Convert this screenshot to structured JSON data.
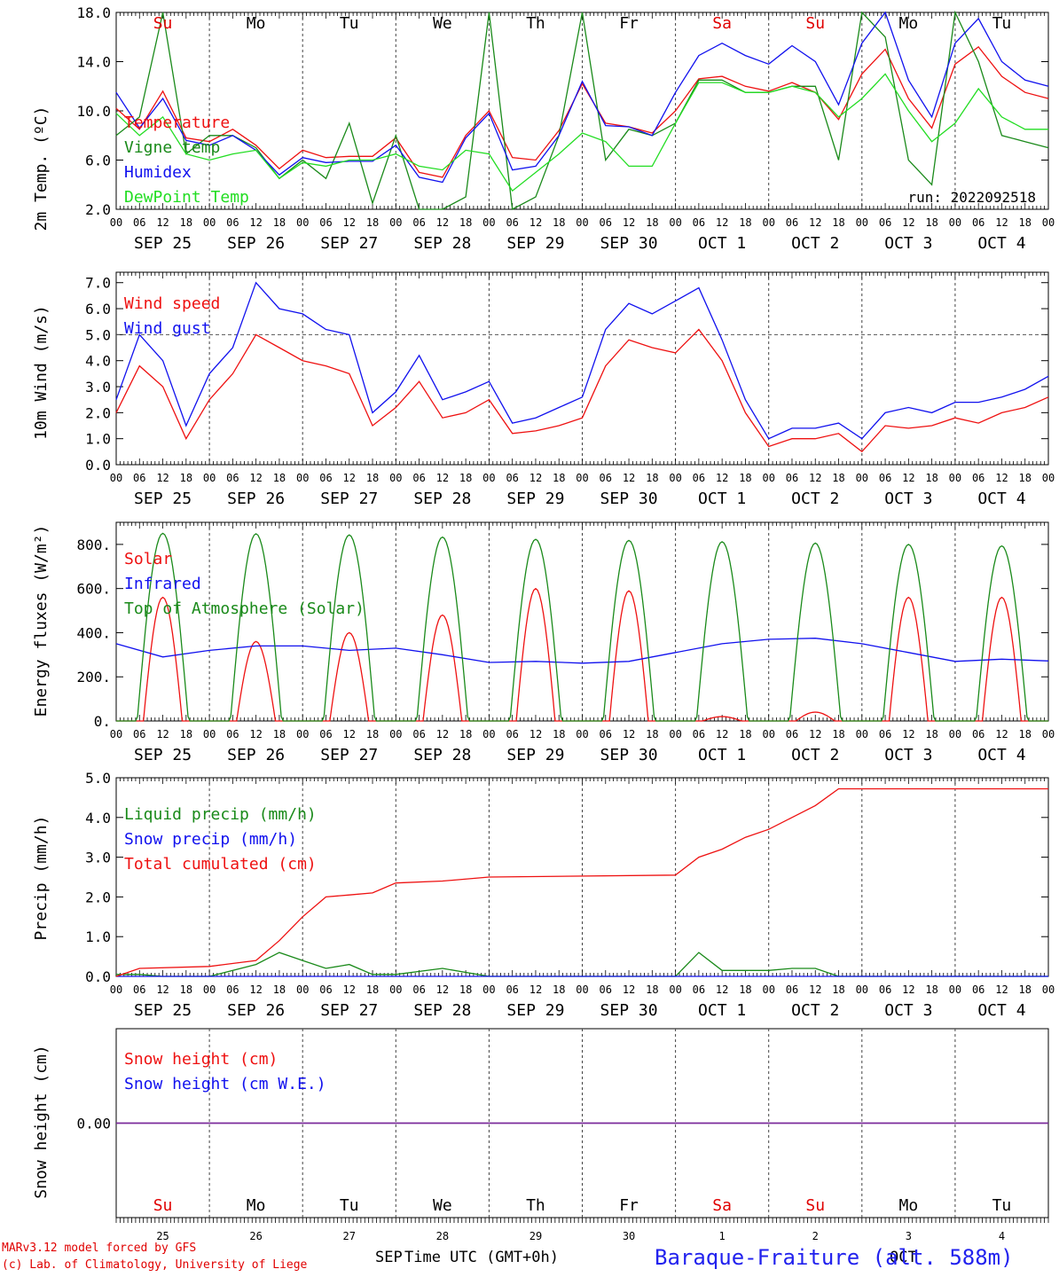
{
  "run_label": "run: 2022092518",
  "station": "Baraque-Fraiture (alt. 588m)",
  "credits": [
    "MARv3.12 model forced by GFS",
    "(c) Lab. of Climatology, University of Liege"
  ],
  "x_axis_title": "Time UTC (GMT+0h)",
  "bottom_month_labels": {
    "sep": "SEP",
    "oct": "OCT"
  },
  "day_names": [
    {
      "name": "Su",
      "color": "#e00000"
    },
    {
      "name": "Mo",
      "color": "#000000"
    },
    {
      "name": "Tu",
      "color": "#000000"
    },
    {
      "name": "We",
      "color": "#000000"
    },
    {
      "name": "Th",
      "color": "#000000"
    },
    {
      "name": "Fr",
      "color": "#000000"
    },
    {
      "name": "Sa",
      "color": "#e00000"
    },
    {
      "name": "Su",
      "color": "#e00000"
    },
    {
      "name": "Mo",
      "color": "#000000"
    },
    {
      "name": "Tu",
      "color": "#000000"
    }
  ],
  "day_numbers": [
    "25",
    "26",
    "27",
    "28",
    "29",
    "30",
    "1",
    "2",
    "3",
    "4"
  ],
  "date_labels": [
    "SEP 25",
    "SEP 26",
    "SEP 27",
    "SEP 28",
    "SEP 29",
    "SEP 30",
    "OCT  1",
    "OCT  2",
    "OCT  3",
    "OCT  4"
  ],
  "hour_labels": [
    "00",
    "06",
    "12",
    "18"
  ],
  "colors": {
    "red": "#ee1111",
    "green": "#1a8a1a",
    "blue": "#1111ee",
    "lightgreen": "#22dd22",
    "purple": "#7a2a9a"
  },
  "chart_data": [
    {
      "type": "line",
      "ylabel": "2m Temp. (ºC)",
      "ylim": [
        2.0,
        18.0
      ],
      "yticks": [
        "2.0",
        "6.0",
        "10.0",
        "14.0",
        "18.0"
      ],
      "x_unit": "hours since 2022-09-25 00 UTC",
      "annotation": "run: 2022092518",
      "series": [
        {
          "name": "Temperature",
          "color": "#ee1111",
          "x": [
            0,
            6,
            12,
            18,
            24,
            30,
            36,
            42,
            48,
            54,
            60,
            66,
            72,
            78,
            84,
            90,
            96,
            102,
            108,
            114,
            120,
            126,
            132,
            138,
            144,
            150,
            156,
            162,
            168,
            174,
            180,
            186,
            192,
            198,
            204,
            210,
            216,
            222,
            228,
            234,
            240
          ],
          "values": [
            10.2,
            8.5,
            11.6,
            7.8,
            7.5,
            8.5,
            7.2,
            5.3,
            6.8,
            6.2,
            6.3,
            6.3,
            7.8,
            5.0,
            4.6,
            8.0,
            10.0,
            6.2,
            6.0,
            8.4,
            12.2,
            9.0,
            8.7,
            8.2,
            10.0,
            12.6,
            12.8,
            12.0,
            11.6,
            12.3,
            11.5,
            9.3,
            13.0,
            15.0,
            11.0,
            8.6,
            13.8,
            15.2,
            12.8,
            11.5,
            11.0
          ]
        },
        {
          "name": "Vigne temp",
          "color": "#1a8a1a",
          "x": [
            0,
            6,
            12,
            18,
            24,
            30,
            36,
            42,
            48,
            54,
            60,
            66,
            72,
            78,
            84,
            90,
            96,
            102,
            108,
            114,
            120,
            126,
            132,
            138,
            144,
            150,
            156,
            162,
            168,
            174,
            180,
            186,
            192,
            198,
            204,
            210,
            216,
            222,
            228,
            234,
            240
          ],
          "values": [
            8.0,
            9.5,
            18.0,
            6.5,
            8.0,
            8.0,
            7.0,
            4.5,
            6.0,
            4.5,
            9.0,
            2.5,
            8.0,
            2.0,
            2.0,
            3.0,
            18.0,
            1.5,
            3.0,
            8.0,
            18.0,
            6.0,
            8.5,
            8.0,
            9.0,
            12.5,
            12.5,
            11.5,
            11.5,
            12.0,
            12.0,
            6.0,
            18.0,
            16.0,
            6.0,
            4.0,
            18.0,
            14.0,
            8.0,
            7.5,
            7.0
          ]
        },
        {
          "name": "Humidex",
          "color": "#1111ee",
          "x": [
            0,
            6,
            12,
            18,
            24,
            30,
            36,
            42,
            48,
            54,
            60,
            66,
            72,
            78,
            84,
            90,
            96,
            102,
            108,
            114,
            120,
            126,
            132,
            138,
            144,
            150,
            156,
            162,
            168,
            174,
            180,
            186,
            192,
            198,
            204,
            210,
            216,
            222,
            228,
            234,
            240
          ],
          "values": [
            11.5,
            8.6,
            11.0,
            7.6,
            7.2,
            8.0,
            6.8,
            4.8,
            6.2,
            5.8,
            5.9,
            5.9,
            7.2,
            4.6,
            4.2,
            7.8,
            9.8,
            5.2,
            5.5,
            8.0,
            12.4,
            8.8,
            8.7,
            8.0,
            11.5,
            14.5,
            15.5,
            14.5,
            13.8,
            15.3,
            14.0,
            10.5,
            15.5,
            18.0,
            12.5,
            9.5,
            15.5,
            17.5,
            14.0,
            12.5,
            12.0
          ]
        },
        {
          "name": "DewPoint Temp",
          "color": "#22dd22",
          "x": [
            0,
            6,
            12,
            18,
            24,
            30,
            36,
            42,
            48,
            54,
            60,
            66,
            72,
            78,
            84,
            90,
            96,
            102,
            108,
            114,
            120,
            126,
            132,
            138,
            144,
            150,
            156,
            162,
            168,
            174,
            180,
            186,
            192,
            198,
            204,
            210,
            216,
            222,
            228,
            234,
            240
          ],
          "values": [
            9.8,
            8.0,
            9.5,
            6.5,
            6.0,
            6.5,
            6.8,
            4.5,
            5.8,
            5.5,
            6.0,
            6.0,
            6.5,
            5.5,
            5.2,
            6.8,
            6.5,
            3.5,
            5.0,
            6.5,
            8.2,
            7.5,
            5.5,
            5.5,
            9.0,
            12.3,
            12.3,
            11.5,
            11.5,
            12.0,
            11.5,
            9.5,
            11.0,
            13.0,
            10.0,
            7.5,
            9.0,
            11.8,
            9.5,
            8.5,
            8.5
          ]
        }
      ],
      "legend": [
        "Temperature",
        "Vigne temp",
        "Humidex",
        "DewPoint Temp"
      ],
      "legend_placement": "top-left"
    },
    {
      "type": "line",
      "ylabel": "10m Wind (m/s)",
      "ylim": [
        0.0,
        7.5
      ],
      "yticks": [
        "0.0",
        "1.0",
        "2.0",
        "3.0",
        "4.0",
        "5.0",
        "6.0",
        "7.0"
      ],
      "reference_line": 5.0,
      "series": [
        {
          "name": "Wind speed",
          "color": "#ee1111",
          "x": [
            0,
            6,
            12,
            18,
            24,
            30,
            36,
            42,
            48,
            54,
            60,
            66,
            72,
            78,
            84,
            90,
            96,
            102,
            108,
            114,
            120,
            126,
            132,
            138,
            144,
            150,
            156,
            162,
            168,
            174,
            180,
            186,
            192,
            198,
            204,
            210,
            216,
            222,
            228,
            234,
            240
          ],
          "values": [
            2.0,
            3.8,
            3.0,
            1.0,
            2.5,
            3.5,
            5.0,
            4.5,
            4.0,
            3.8,
            3.5,
            1.5,
            2.2,
            3.2,
            1.8,
            2.0,
            2.5,
            1.2,
            1.3,
            1.5,
            1.8,
            3.8,
            4.8,
            4.5,
            4.3,
            5.2,
            4.0,
            2.0,
            0.7,
            1.0,
            1.0,
            1.2,
            0.5,
            1.5,
            1.4,
            1.5,
            1.8,
            1.6,
            2.0,
            2.2,
            2.6
          ]
        },
        {
          "name": "Wind gust",
          "color": "#1111ee",
          "x": [
            0,
            6,
            12,
            18,
            24,
            30,
            36,
            42,
            48,
            54,
            60,
            66,
            72,
            78,
            84,
            90,
            96,
            102,
            108,
            114,
            120,
            126,
            132,
            138,
            144,
            150,
            156,
            162,
            168,
            174,
            180,
            186,
            192,
            198,
            204,
            210,
            216,
            222,
            228,
            234,
            240
          ],
          "values": [
            2.5,
            5.0,
            4.0,
            1.5,
            3.5,
            4.5,
            7.0,
            6.0,
            5.8,
            5.2,
            5.0,
            2.0,
            2.8,
            4.2,
            2.5,
            2.8,
            3.2,
            1.6,
            1.8,
            2.2,
            2.6,
            5.2,
            6.2,
            5.8,
            6.3,
            6.8,
            4.8,
            2.5,
            1.0,
            1.4,
            1.4,
            1.6,
            1.0,
            2.0,
            2.2,
            2.0,
            2.4,
            2.4,
            2.6,
            2.9,
            3.4
          ]
        }
      ],
      "legend": [
        "Wind speed",
        "Wind gust"
      ],
      "legend_placement": "top-left"
    },
    {
      "type": "line",
      "ylabel": "Energy fluxes (W/m²)",
      "ylim": [
        0,
        900
      ],
      "yticks": [
        "0.",
        "200.",
        "400.",
        "600.",
        "800."
      ],
      "series": [
        {
          "name": "Solar",
          "color": "#ee1111",
          "peak_hour": 12,
          "daily_peaks": [
            560,
            360,
            400,
            480,
            600,
            590,
            20,
            40,
            560,
            560
          ]
        },
        {
          "name": "Infrared",
          "color": "#1111ee",
          "x": [
            0,
            12,
            24,
            36,
            48,
            60,
            72,
            84,
            96,
            108,
            120,
            132,
            144,
            156,
            168,
            180,
            192,
            204,
            216,
            228,
            240
          ],
          "values": [
            350,
            290,
            320,
            340,
            340,
            320,
            330,
            300,
            265,
            270,
            262,
            270,
            310,
            350,
            370,
            375,
            350,
            310,
            270,
            280,
            272
          ]
        },
        {
          "name": "Top of Atmosphere (Solar)",
          "color": "#1a8a1a",
          "peak_hour": 12,
          "daily_peaks": [
            850,
            848,
            843,
            833,
            823,
            818,
            812,
            806,
            800,
            793
          ]
        }
      ],
      "legend": [
        "Solar",
        "Infrared",
        "Top of Atmosphere (Solar)"
      ],
      "legend_placement": "top-left"
    },
    {
      "type": "line",
      "ylabel": "Precip (mm/h)",
      "ylim": [
        0.0,
        5.0
      ],
      "yticks": [
        "0.0",
        "1.0",
        "2.0",
        "3.0",
        "4.0",
        "5.0"
      ],
      "series": [
        {
          "name": "Liquid precip (mm/h)",
          "color": "#1a8a1a",
          "x": [
            0,
            6,
            12,
            24,
            36,
            42,
            48,
            54,
            60,
            66,
            72,
            84,
            96,
            144,
            150,
            156,
            162,
            168,
            174,
            180,
            186,
            240
          ],
          "values": [
            0.05,
            0.05,
            0.0,
            0.0,
            0.3,
            0.6,
            0.4,
            0.2,
            0.3,
            0.05,
            0.05,
            0.2,
            0.0,
            0.0,
            0.6,
            0.15,
            0.15,
            0.15,
            0.2,
            0.2,
            0.0,
            0.0
          ]
        },
        {
          "name": "Snow precip (mm/h)",
          "color": "#1111ee",
          "x": [
            0,
            240
          ],
          "values": [
            0.0,
            0.0
          ]
        },
        {
          "name": "Total cumulated (cm)",
          "color": "#ee1111",
          "x": [
            0,
            6,
            24,
            36,
            42,
            48,
            54,
            60,
            66,
            72,
            84,
            96,
            144,
            150,
            156,
            162,
            168,
            174,
            180,
            186,
            192,
            240
          ],
          "values": [
            0.0,
            0.2,
            0.25,
            0.4,
            0.9,
            1.5,
            2.0,
            2.05,
            2.1,
            2.35,
            2.4,
            2.5,
            2.55,
            3.0,
            3.2,
            3.5,
            3.7,
            4.0,
            4.3,
            4.72,
            4.72,
            4.72
          ]
        }
      ],
      "legend": [
        "Liquid precip (mm/h)",
        "Snow precip (mm/h)",
        "Total cumulated (cm)"
      ],
      "legend_placement": "top-left"
    },
    {
      "type": "line",
      "ylabel": "Snow height (cm)",
      "yticks": [
        "0.00"
      ],
      "series": [
        {
          "name": "Snow height (cm)",
          "color": "#ee1111",
          "x": [
            0,
            240
          ],
          "values": [
            0.0,
            0.0
          ]
        },
        {
          "name": "Snow height (cm W.E.)",
          "color": "#1111ee",
          "x": [
            0,
            240
          ],
          "values": [
            0.0,
            0.0
          ]
        }
      ],
      "legend": [
        "Snow height (cm)",
        "Snow height (cm W.E.)"
      ],
      "legend_placement": "top-left"
    }
  ]
}
